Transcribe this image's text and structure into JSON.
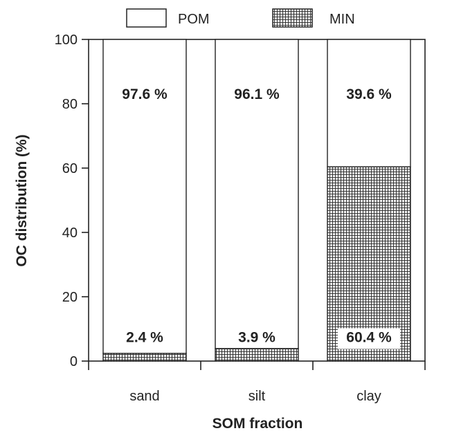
{
  "chart_data": {
    "type": "bar",
    "stacked": true,
    "categories": [
      "sand",
      "silt",
      "clay"
    ],
    "series": [
      {
        "name": "MIN",
        "values": [
          2.4,
          3.9,
          60.4
        ],
        "labels": [
          "2.4 %",
          "3.9 %",
          "60.4 %"
        ],
        "fill": "crosshatch"
      },
      {
        "name": "POM",
        "values": [
          97.6,
          96.1,
          39.6
        ],
        "labels": [
          "97.6 %",
          "96.1 %",
          "39.6 %"
        ],
        "fill": "white"
      }
    ],
    "xlabel": "SOM fraction",
    "ylabel": "OC distribution (%)",
    "ylim": [
      0,
      100
    ],
    "yticks": [
      0,
      20,
      40,
      60,
      80,
      100
    ],
    "grid": false,
    "legend_position": "top",
    "colors": {
      "line": "#222222",
      "background": "#ffffff"
    }
  }
}
